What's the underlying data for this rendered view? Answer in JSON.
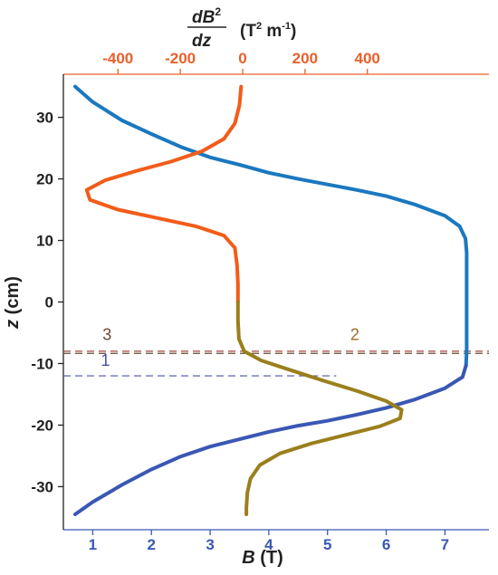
{
  "chart_data": {
    "type": "line",
    "top_axis": {
      "label_numerator": "dB",
      "label_sup": "2",
      "label_denominator": "dz",
      "unit_prefix": "(T",
      "unit_sup": "2",
      "unit_mid": " m",
      "unit_sup2": "-1",
      "unit_suffix": ")",
      "ticks": [
        -400,
        -200,
        0,
        200,
        400
      ],
      "tick_labels": [
        "-400",
        "-200",
        "0",
        "200",
        "400"
      ],
      "color": "#e8602a"
    },
    "bottom_axis": {
      "label_italic": "B",
      "label_unit": " (T)",
      "ticks": [
        1,
        2,
        3,
        4,
        5,
        6,
        7
      ],
      "tick_labels": [
        "1",
        "2",
        "3",
        "4",
        "5",
        "6",
        "7"
      ],
      "color": "#3a57b5"
    },
    "left_axis": {
      "label_italic": "z",
      "label_unit": " (cm)",
      "ticks": [
        30,
        20,
        10,
        0,
        -10,
        -20,
        -30
      ],
      "tick_labels": [
        "30",
        "20",
        "10",
        "0",
        "-10",
        "-20",
        "-30"
      ],
      "ylim": [
        -37,
        37
      ]
    },
    "xlim_bottom": [
      0.5,
      7.75
    ],
    "xlim_top": [
      -575,
      790
    ],
    "series": [
      {
        "axis": "bottom",
        "color_top": "#1a78bf",
        "color_bottom": "#3a57b5",
        "split_z": -12,
        "points": [
          [
            0.7,
            35
          ],
          [
            1.0,
            32.5
          ],
          [
            1.5,
            29.5
          ],
          [
            2.0,
            27.3
          ],
          [
            2.5,
            25.2
          ],
          [
            3.0,
            23.5
          ],
          [
            3.5,
            22.3
          ],
          [
            4.0,
            21.0
          ],
          [
            4.5,
            20.0
          ],
          [
            5.0,
            19.1
          ],
          [
            5.5,
            18.2
          ],
          [
            6.0,
            17.2
          ],
          [
            6.5,
            15.8
          ],
          [
            7.0,
            14.0
          ],
          [
            7.25,
            12.3
          ],
          [
            7.35,
            10.3
          ],
          [
            7.37,
            8.0
          ],
          [
            7.37,
            0
          ],
          [
            7.37,
            -5
          ],
          [
            7.37,
            -8
          ],
          [
            7.36,
            -10.3
          ],
          [
            7.3,
            -12.2
          ],
          [
            7.0,
            -14.0
          ],
          [
            6.5,
            -15.8
          ],
          [
            6.0,
            -17.2
          ],
          [
            5.5,
            -18.3
          ],
          [
            5.0,
            -19.3
          ],
          [
            4.5,
            -20.1
          ],
          [
            4.0,
            -21.1
          ],
          [
            3.5,
            -22.3
          ],
          [
            3.0,
            -23.5
          ],
          [
            2.5,
            -25.1
          ],
          [
            2.0,
            -27.2
          ],
          [
            1.5,
            -29.7
          ],
          [
            1.0,
            -32.5
          ],
          [
            0.7,
            -34.5
          ]
        ]
      },
      {
        "axis": "top",
        "color_top": "#f25c19",
        "color_bottom": "#9a7f1c",
        "split_z": 0,
        "points": [
          [
            -5,
            35
          ],
          [
            -10,
            32
          ],
          [
            -25,
            29
          ],
          [
            -60,
            26.5
          ],
          [
            -130,
            24.5
          ],
          [
            -230,
            22.8
          ],
          [
            -340,
            21.3
          ],
          [
            -440,
            19.8
          ],
          [
            -500,
            18.2
          ],
          [
            -490,
            16.6
          ],
          [
            -400,
            15.0
          ],
          [
            -270,
            13.6
          ],
          [
            -150,
            12.3
          ],
          [
            -60,
            10.8
          ],
          [
            -25,
            8.8
          ],
          [
            -18,
            6.0
          ],
          [
            -15,
            3.0
          ],
          [
            -15,
            0
          ],
          [
            -15,
            -3.0
          ],
          [
            -12,
            -6.0
          ],
          [
            5,
            -8.0
          ],
          [
            60,
            -9.5
          ],
          [
            150,
            -11.0
          ],
          [
            260,
            -12.8
          ],
          [
            370,
            -14.5
          ],
          [
            460,
            -16.1
          ],
          [
            510,
            -17.5
          ],
          [
            505,
            -18.9
          ],
          [
            440,
            -20.2
          ],
          [
            330,
            -21.6
          ],
          [
            220,
            -23.0
          ],
          [
            120,
            -24.6
          ],
          [
            55,
            -26.5
          ],
          [
            25,
            -28.7
          ],
          [
            15,
            -31.0
          ],
          [
            12,
            -33.5
          ],
          [
            12,
            -34.5
          ]
        ]
      }
    ],
    "reference_lines": [
      {
        "z": -8.0,
        "x_start": -575,
        "x_end": 790,
        "axis": "top",
        "color": "#a0473a"
      },
      {
        "z": -8.35,
        "x_start": -575,
        "x_end": 790,
        "axis": "top",
        "color": "#6b4a32"
      },
      {
        "z": -12.0,
        "x_start": -575,
        "x_end": 300,
        "axis": "top",
        "color": "#4a50a8"
      }
    ],
    "annotations": [
      {
        "text": "3",
        "x": -435,
        "z": -6.2,
        "color": "#6b4a32"
      },
      {
        "text": "2",
        "x": 360,
        "z": -6.2,
        "color": "#a06a2a"
      },
      {
        "text": "1",
        "x": -440,
        "z": -10.4,
        "color": "#4a50a8"
      }
    ]
  }
}
